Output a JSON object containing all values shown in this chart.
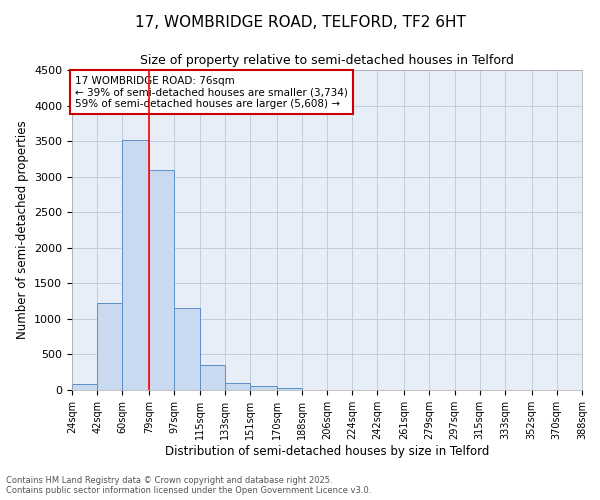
{
  "title1": "17, WOMBRIDGE ROAD, TELFORD, TF2 6HT",
  "title2": "Size of property relative to semi-detached houses in Telford",
  "xlabel": "Distribution of semi-detached houses by size in Telford",
  "ylabel": "Number of semi-detached properties",
  "bin_labels": [
    "24sqm",
    "42sqm",
    "60sqm",
    "79sqm",
    "97sqm",
    "115sqm",
    "133sqm",
    "151sqm",
    "170sqm",
    "188sqm",
    "206sqm",
    "224sqm",
    "242sqm",
    "261sqm",
    "279sqm",
    "297sqm",
    "315sqm",
    "333sqm",
    "352sqm",
    "370sqm",
    "388sqm"
  ],
  "bin_edges": [
    24,
    42,
    60,
    79,
    97,
    115,
    133,
    151,
    170,
    188,
    206,
    224,
    242,
    261,
    279,
    297,
    315,
    333,
    352,
    370,
    388
  ],
  "bar_heights": [
    80,
    1220,
    3520,
    3100,
    1150,
    350,
    100,
    55,
    25,
    5,
    0,
    0,
    0,
    0,
    0,
    0,
    0,
    0,
    0,
    0
  ],
  "bar_color": "#c8d9f0",
  "bar_edge_color": "#5b8fc9",
  "property_line_x": 79,
  "annotation_title": "17 WOMBRIDGE ROAD: 76sqm",
  "annotation_line1": "← 39% of semi-detached houses are smaller (3,734)",
  "annotation_line2": "59% of semi-detached houses are larger (5,608) →",
  "annotation_box_color": "#ffffff",
  "annotation_box_edge": "#cc0000",
  "grid_color": "#c0cce0",
  "background_color": "#e8eef8",
  "ylim": [
    0,
    4500
  ],
  "yticks": [
    0,
    500,
    1000,
    1500,
    2000,
    2500,
    3000,
    3500,
    4000,
    4500
  ],
  "footer1": "Contains HM Land Registry data © Crown copyright and database right 2025.",
  "footer2": "Contains public sector information licensed under the Open Government Licence v3.0."
}
